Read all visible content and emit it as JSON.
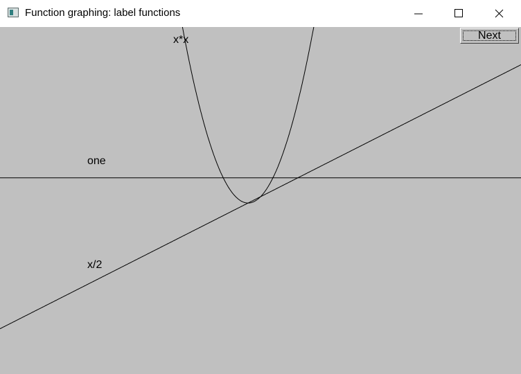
{
  "window": {
    "title": "Function graphing: label functions"
  },
  "toolbar": {
    "next_label": "Next"
  },
  "graph": {
    "labels": {
      "square": "x*x",
      "constant": "one",
      "half": "x/2"
    }
  },
  "chart_data": {
    "type": "line",
    "series": [
      {
        "name": "x*x",
        "expression": "x*x"
      },
      {
        "name": "one",
        "expression": "1"
      },
      {
        "name": "x/2",
        "expression": "x/2"
      }
    ],
    "xlim": [
      -10,
      11
    ],
    "ylim": [
      -6.8,
      7
    ],
    "grid": false
  }
}
